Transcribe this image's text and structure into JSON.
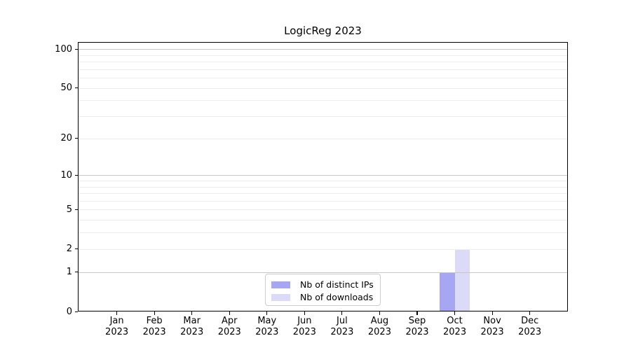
{
  "figure_title": "LogicReg 2023",
  "chart_data": {
    "type": "bar",
    "title": "LogicReg 2023",
    "categories": [
      "Jan 2023",
      "Feb 2023",
      "Mar 2023",
      "Apr 2023",
      "May 2023",
      "Jun 2023",
      "Jul 2023",
      "Aug 2023",
      "Sep 2023",
      "Oct 2023",
      "Nov 2023",
      "Dec 2023"
    ],
    "series": [
      {
        "name": "Nb of distinct IPs",
        "color": "#a6a6f2",
        "values": [
          0,
          0,
          0,
          0,
          0,
          0,
          0,
          0,
          0,
          1,
          0,
          0
        ]
      },
      {
        "name": "Nb of downloads",
        "color": "#dbdbf8",
        "values": [
          0,
          0,
          0,
          0,
          0,
          0,
          0,
          0,
          0,
          2,
          0,
          0
        ]
      }
    ],
    "xlabel": "",
    "ylabel": "",
    "yscale": "log10(value+1)",
    "ylim": [
      0,
      113
    ],
    "yticks": [
      0,
      1,
      2,
      5,
      10,
      20,
      50,
      100
    ],
    "minor_gridlines": [
      3,
      4,
      6,
      7,
      8,
      9,
      30,
      40,
      60,
      70,
      80,
      90
    ],
    "major_gridlines": [
      1,
      10,
      100
    ],
    "grid": "on",
    "grid_over_bars": true,
    "legend_position": "lower center",
    "legend_items": [
      "Nb of distinct IPs",
      "Nb of downloads"
    ]
  },
  "colors": {
    "background": "#ffffff",
    "axis": "#000000",
    "major_grid": "#c6c6c6",
    "minor_grid": "#ededed",
    "legend_border": "#cccccc",
    "bar_distinct_ips": "#a6a6f2",
    "bar_downloads": "#dbdbf8"
  }
}
